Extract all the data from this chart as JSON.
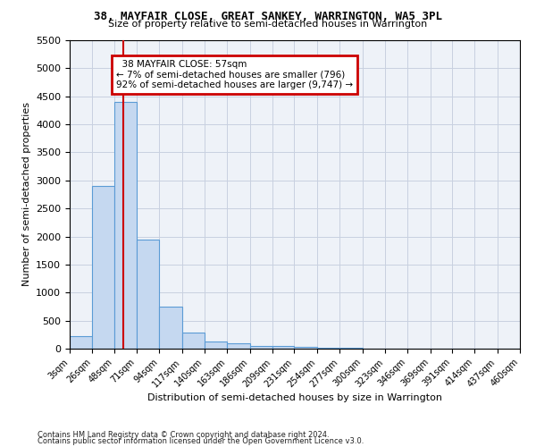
{
  "title": "38, MAYFAIR CLOSE, GREAT SANKEY, WARRINGTON, WA5 3PL",
  "subtitle": "Size of property relative to semi-detached houses in Warrington",
  "xlabel": "Distribution of semi-detached houses by size in Warrington",
  "ylabel": "Number of semi-detached properties",
  "property_size": 57,
  "property_label": "38 MAYFAIR CLOSE: 57sqm",
  "pct_smaller": 7,
  "pct_larger": 92,
  "count_smaller": 796,
  "count_larger": 9747,
  "bin_edges": [
    3,
    26,
    48,
    71,
    94,
    117,
    140,
    163,
    186,
    209,
    231,
    254,
    277,
    300,
    323,
    346,
    369,
    391,
    414,
    437,
    460
  ],
  "bar_heights": [
    220,
    2900,
    4400,
    1950,
    750,
    290,
    120,
    90,
    55,
    50,
    25,
    15,
    10,
    5,
    3,
    2,
    1,
    1,
    0,
    0
  ],
  "bar_color": "#c5d8f0",
  "bar_edge_color": "#5b9bd5",
  "grid_color": "#c8d0e0",
  "annotation_box_color": "#cc0000",
  "vline_color": "#cc0000",
  "ylim": [
    0,
    5500
  ],
  "yticks": [
    0,
    500,
    1000,
    1500,
    2000,
    2500,
    3000,
    3500,
    4000,
    4500,
    5000,
    5500
  ],
  "footnote1": "Contains HM Land Registry data © Crown copyright and database right 2024.",
  "footnote2": "Contains public sector information licensed under the Open Government Licence v3.0.",
  "background_color": "#eef2f8"
}
